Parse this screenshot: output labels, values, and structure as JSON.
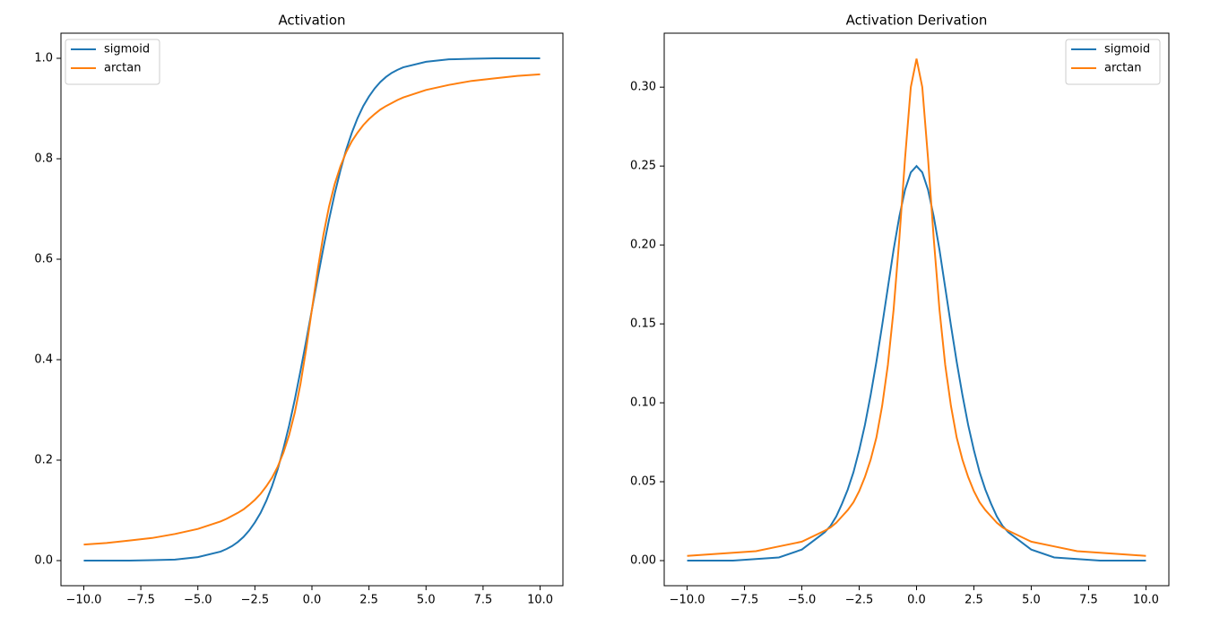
{
  "chart_data": [
    {
      "type": "line",
      "title": "Activation",
      "legend": "upper left",
      "grid": false,
      "x": [
        -10,
        -9,
        -8,
        -7,
        -6,
        -5,
        -4,
        -3.75,
        -3.5,
        -3.25,
        -3,
        -2.75,
        -2.5,
        -2.25,
        -2,
        -1.75,
        -1.5,
        -1.25,
        -1,
        -0.75,
        -0.5,
        -0.25,
        0,
        0.25,
        0.5,
        0.75,
        1,
        1.25,
        1.5,
        1.75,
        2,
        2.25,
        2.5,
        2.75,
        3,
        3.25,
        3.5,
        3.75,
        4,
        5,
        6,
        7,
        8,
        9,
        10
      ],
      "series": [
        {
          "name": "sigmoid",
          "color": "#1f77b4",
          "values": [
            0.0,
            0.0,
            0.0,
            0.001,
            0.002,
            0.007,
            0.018,
            0.023,
            0.029,
            0.037,
            0.047,
            0.06,
            0.076,
            0.095,
            0.119,
            0.148,
            0.182,
            0.223,
            0.269,
            0.321,
            0.378,
            0.438,
            0.5,
            0.562,
            0.622,
            0.679,
            0.731,
            0.777,
            0.818,
            0.852,
            0.881,
            0.905,
            0.924,
            0.94,
            0.953,
            0.963,
            0.971,
            0.977,
            0.982,
            0.993,
            0.998,
            0.999,
            1.0,
            1.0,
            1.0
          ]
        },
        {
          "name": "arctan",
          "color": "#ff7f0e",
          "values": [
            0.032,
            0.035,
            0.04,
            0.045,
            0.053,
            0.063,
            0.078,
            0.083,
            0.089,
            0.095,
            0.102,
            0.111,
            0.121,
            0.133,
            0.148,
            0.165,
            0.187,
            0.215,
            0.25,
            0.295,
            0.352,
            0.422,
            0.5,
            0.578,
            0.648,
            0.705,
            0.75,
            0.785,
            0.813,
            0.835,
            0.852,
            0.867,
            0.879,
            0.889,
            0.898,
            0.905,
            0.911,
            0.917,
            0.922,
            0.937,
            0.947,
            0.955,
            0.96,
            0.965,
            0.968
          ]
        }
      ],
      "xlim": [
        -11,
        11
      ],
      "ylim": [
        -0.05,
        1.05
      ],
      "xticks": [
        {
          "value": -10,
          "label": "−10.0"
        },
        {
          "value": -7.5,
          "label": "−7.5"
        },
        {
          "value": -5,
          "label": "−5.0"
        },
        {
          "value": -2.5,
          "label": "−2.5"
        },
        {
          "value": 0,
          "label": "0.0"
        },
        2.5,
        {
          "value": 5,
          "label": "5.0"
        },
        7.5,
        {
          "value": 10,
          "label": "10.0"
        }
      ],
      "yticks": [
        {
          "value": 0,
          "label": "0.0"
        },
        0.2,
        0.4,
        0.6,
        0.8,
        {
          "value": 1,
          "label": "1.0"
        }
      ]
    },
    {
      "type": "line",
      "title": "Activation Derivation",
      "legend": "upper right",
      "grid": false,
      "x": [
        -10,
        -9,
        -8,
        -7,
        -6,
        -5,
        -4,
        -3.75,
        -3.5,
        -3.25,
        -3,
        -2.75,
        -2.5,
        -2.25,
        -2,
        -1.75,
        -1.5,
        -1.25,
        -1,
        -0.75,
        -0.5,
        -0.25,
        0,
        0.25,
        0.5,
        0.75,
        1,
        1.25,
        1.5,
        1.75,
        2,
        2.25,
        2.5,
        2.75,
        3,
        3.25,
        3.5,
        3.75,
        4,
        5,
        6,
        7,
        8,
        9,
        10
      ],
      "series": [
        {
          "name": "sigmoid",
          "color": "#1f77b4",
          "values": [
            0.0,
            0.0,
            0.0,
            0.001,
            0.002,
            0.007,
            0.018,
            0.022,
            0.028,
            0.036,
            0.045,
            0.056,
            0.07,
            0.086,
            0.105,
            0.126,
            0.149,
            0.173,
            0.197,
            0.218,
            0.235,
            0.246,
            0.25,
            0.246,
            0.235,
            0.218,
            0.197,
            0.173,
            0.149,
            0.126,
            0.105,
            0.086,
            0.07,
            0.056,
            0.045,
            0.036,
            0.028,
            0.022,
            0.018,
            0.007,
            0.002,
            0.001,
            0.0,
            0.0,
            0.0
          ]
        },
        {
          "name": "arctan",
          "color": "#ff7f0e",
          "values": [
            0.003,
            0.004,
            0.005,
            0.006,
            0.009,
            0.012,
            0.019,
            0.021,
            0.024,
            0.028,
            0.032,
            0.037,
            0.044,
            0.053,
            0.064,
            0.078,
            0.098,
            0.124,
            0.159,
            0.204,
            0.255,
            0.3,
            0.318,
            0.3,
            0.255,
            0.204,
            0.159,
            0.124,
            0.098,
            0.078,
            0.064,
            0.053,
            0.044,
            0.037,
            0.032,
            0.028,
            0.024,
            0.021,
            0.019,
            0.012,
            0.009,
            0.006,
            0.005,
            0.004,
            0.003
          ]
        }
      ],
      "xlim": [
        -11,
        11
      ],
      "ylim": [
        -0.0159,
        0.3342
      ],
      "xticks": [
        {
          "value": -10,
          "label": "−10.0"
        },
        {
          "value": -7.5,
          "label": "−7.5"
        },
        {
          "value": -5,
          "label": "−5.0"
        },
        {
          "value": -2.5,
          "label": "−2.5"
        },
        {
          "value": 0,
          "label": "0.0"
        },
        2.5,
        {
          "value": 5,
          "label": "5.0"
        },
        7.5,
        {
          "value": 10,
          "label": "10.0"
        }
      ],
      "yticks": [
        {
          "value": 0,
          "label": "0.00"
        },
        0.05,
        {
          "value": 0.1,
          "label": "0.10"
        },
        0.15,
        {
          "value": 0.2,
          "label": "0.20"
        },
        0.25,
        {
          "value": 0.3,
          "label": "0.30"
        }
      ]
    }
  ]
}
